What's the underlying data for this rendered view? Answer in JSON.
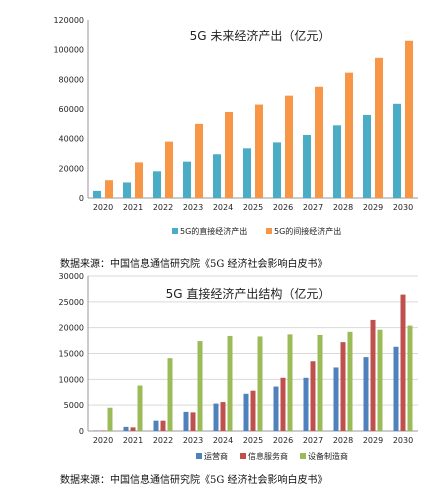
{
  "chart_data": [
    {
      "type": "bar",
      "title": "5G 未来经济产出（亿元）",
      "categories": [
        "2020",
        "2021",
        "2022",
        "2023",
        "2024",
        "2025",
        "2026",
        "2027",
        "2028",
        "2029",
        "2030"
      ],
      "ylim": [
        0,
        120000
      ],
      "yticks": [
        "0",
        "20000",
        "40000",
        "60000",
        "80000",
        "100000",
        "120000"
      ],
      "grid": false,
      "legend": "bottom",
      "series": [
        {
          "name": "5G的直接经济产出",
          "color": "#4bacc6",
          "values": [
            4800,
            10500,
            18000,
            24500,
            29500,
            33500,
            37500,
            42500,
            49000,
            56000,
            63500
          ]
        },
        {
          "name": "5G的间接经济产出",
          "color": "#f79646",
          "values": [
            12000,
            24000,
            38000,
            50000,
            58000,
            63000,
            69000,
            75000,
            84500,
            94500,
            106000
          ]
        }
      ]
    },
    {
      "type": "bar",
      "title": "5G 直接经济产出结构（亿元）",
      "categories": [
        "2020",
        "2021",
        "2022",
        "2023",
        "2024",
        "2025",
        "2026",
        "2027",
        "2028",
        "2029",
        "2030"
      ],
      "ylim": [
        0,
        30000
      ],
      "yticks": [
        "0",
        "5000",
        "10000",
        "15000",
        "20000",
        "25000",
        "30000"
      ],
      "grid": true,
      "legend": "bottom",
      "series": [
        {
          "name": "运营商",
          "color": "#4f81bd",
          "values": [
            100,
            800,
            2000,
            3700,
            5300,
            7200,
            8600,
            10300,
            12300,
            14300,
            16300
          ]
        },
        {
          "name": "信息服务商",
          "color": "#c0504d",
          "values": [
            100,
            700,
            2000,
            3600,
            5600,
            7800,
            10300,
            13500,
            17200,
            21500,
            26400
          ]
        },
        {
          "name": "设备制造商",
          "color": "#9bbb59",
          "values": [
            4500,
            8800,
            14100,
            17400,
            18400,
            18300,
            18700,
            18600,
            19200,
            19600,
            20400
          ]
        }
      ]
    }
  ],
  "sources": [
    "数据来源：中国信息通信研究院《5G 经济社会影响白皮书》",
    "数据来源：中国信息通信研究院《5G 经济社会影响白皮书》"
  ]
}
